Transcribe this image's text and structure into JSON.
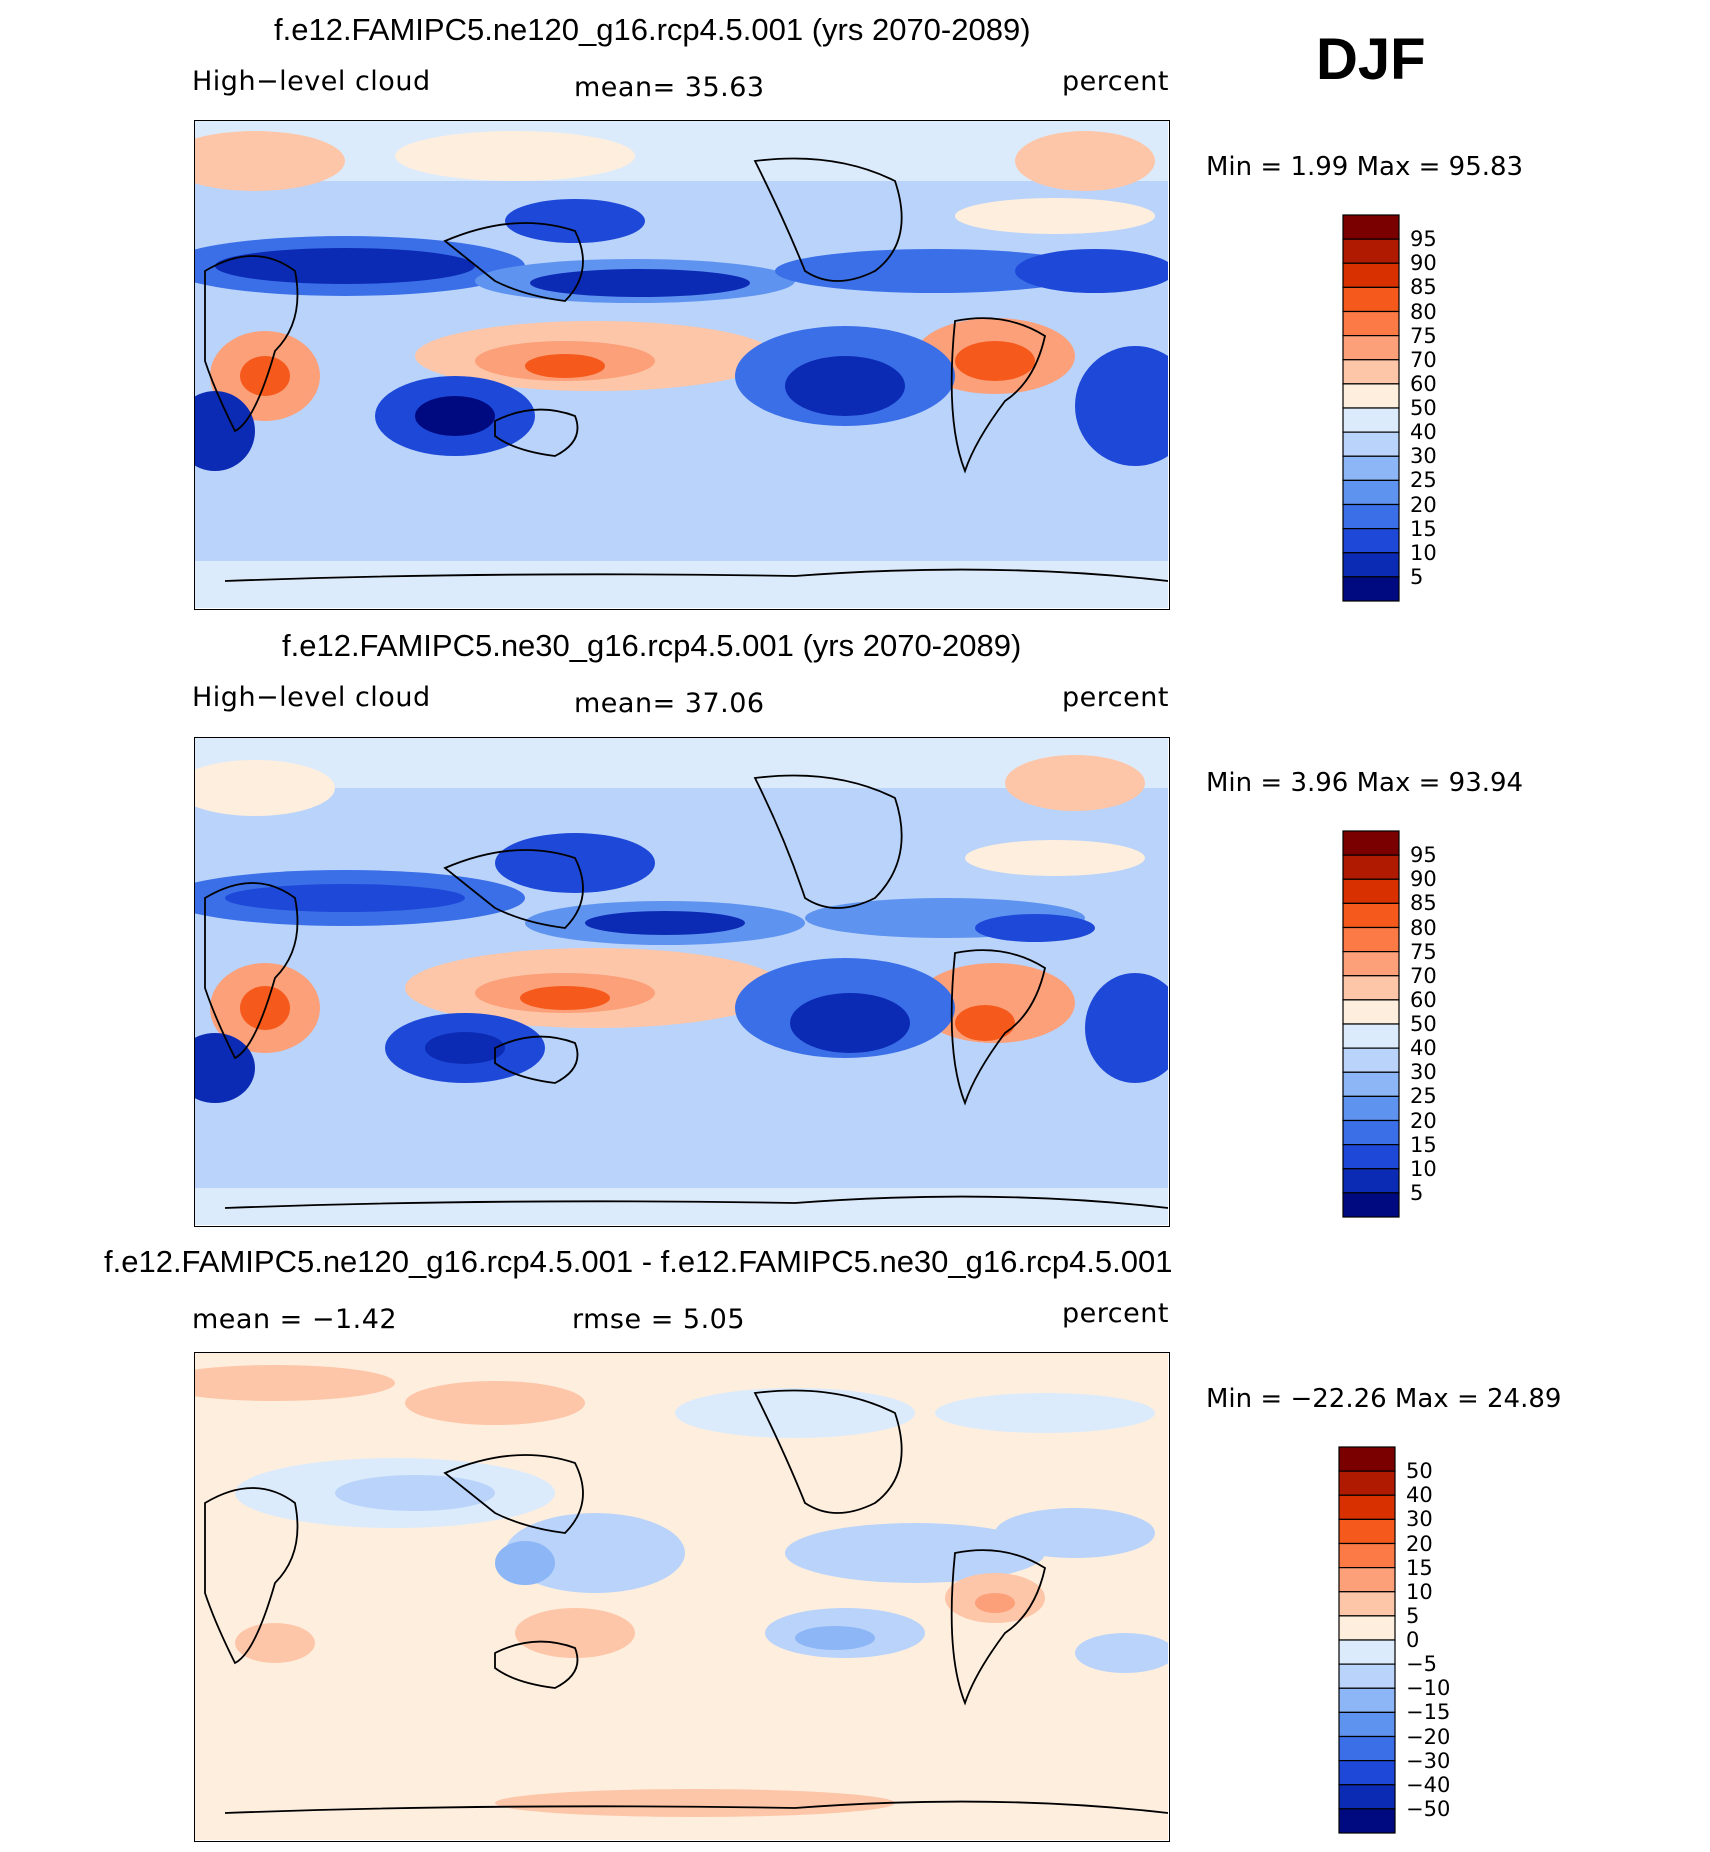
{
  "header": {
    "season": "DJF"
  },
  "panels": [
    {
      "title": "f.e12.FAMIPC5.ne120_g16.rcp4.5.001 (yrs 2070-2089)",
      "left_label": "High−level cloud",
      "mean_text": "mean=   35.63",
      "units": "percent",
      "minmax_text": "Min  =    1.99  Max  =    95.83"
    },
    {
      "title": "f.e12.FAMIPC5.ne30_g16.rcp4.5.001 (yrs 2070-2089)",
      "left_label": "High−level cloud",
      "mean_text": "mean=   37.06",
      "units": "percent",
      "minmax_text": "Min  =    3.96  Max  =    93.94"
    },
    {
      "title": "f.e12.FAMIPC5.ne120_g16.rcp4.5.001 - f.e12.FAMIPC5.ne30_g16.rcp4.5.001",
      "left_label": "mean  =   −1.42",
      "mean_text": "rmse  =     5.05",
      "units": "percent",
      "minmax_text": "Min  = −22.26  Max  =    24.89"
    }
  ],
  "chart_data": [
    {
      "type": "heatmap",
      "title": "f.e12.FAMIPC5.ne120_g16.rcp4.5.001 (yrs 2070-2089)",
      "variable": "High-level cloud",
      "units": "percent",
      "mean": 35.63,
      "min": 1.99,
      "max": 95.83,
      "levels": [
        5,
        10,
        15,
        20,
        25,
        30,
        40,
        50,
        60,
        70,
        75,
        80,
        85,
        90,
        95
      ]
    },
    {
      "type": "heatmap",
      "title": "f.e12.FAMIPC5.ne30_g16.rcp4.5.001 (yrs 2070-2089)",
      "variable": "High-level cloud",
      "units": "percent",
      "mean": 37.06,
      "min": 3.96,
      "max": 93.94,
      "levels": [
        5,
        10,
        15,
        20,
        25,
        30,
        40,
        50,
        60,
        70,
        75,
        80,
        85,
        90,
        95
      ]
    },
    {
      "type": "heatmap",
      "title": "f.e12.FAMIPC5.ne120_g16.rcp4.5.001 - f.e12.FAMIPC5.ne30_g16.rcp4.5.001",
      "variable": "High-level cloud difference",
      "units": "percent",
      "mean": -1.42,
      "rmse": 5.05,
      "min": -22.26,
      "max": 24.89,
      "levels": [
        -50,
        -40,
        -30,
        -20,
        -15,
        -10,
        -5,
        0,
        5,
        10,
        15,
        20,
        30,
        40,
        50
      ]
    }
  ],
  "colorbars": {
    "abs_labels": [
      "95",
      "90",
      "85",
      "80",
      "75",
      "70",
      "60",
      "50",
      "40",
      "30",
      "25",
      "20",
      "15",
      "10",
      "5"
    ],
    "diff_labels": [
      "50",
      "40",
      "30",
      "20",
      "15",
      "10",
      "5",
      "0",
      "−5",
      "−10",
      "−15",
      "−20",
      "−30",
      "−40",
      "−50"
    ],
    "colors": [
      "#7a0000",
      "#b01a00",
      "#d93000",
      "#f55a1c",
      "#fb7a45",
      "#fca07a",
      "#fdc6a8",
      "#feeede",
      "#dcebfb",
      "#b9d3fa",
      "#8db6f7",
      "#5f93f0",
      "#3a6fe8",
      "#1d48d8",
      "#0c2bb5",
      "#000a80"
    ]
  }
}
